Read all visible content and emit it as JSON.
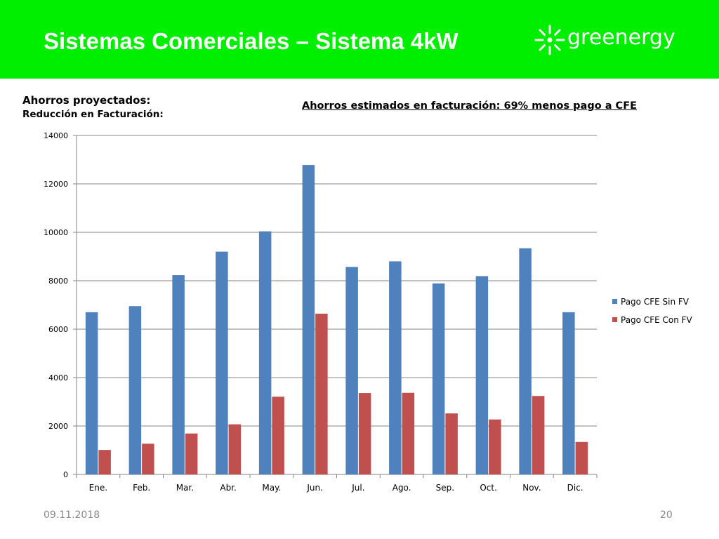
{
  "header": {
    "title": "Sistemas Comerciales – Sistema 4kW",
    "logo_text": "greenergy",
    "background_color": "#00ee00",
    "logo_icon": "sun-burst-icon"
  },
  "subtitle": {
    "line1": "Ahorros proyectados:",
    "line2": "Reducción en Facturación:"
  },
  "chart_data": {
    "type": "bar",
    "title": "Ahorros estimados en facturación: 69% menos pago a CFE",
    "xlabel": "",
    "ylabel": "",
    "categories": [
      "Ene.",
      "Feb.",
      "Mar.",
      "Abr.",
      "May.",
      "Jun.",
      "Jul.",
      "Ago.",
      "Sep.",
      "Oct.",
      "Nov.",
      "Dic."
    ],
    "series": [
      {
        "name": "Pago CFE Sin FV",
        "color": "#4f81bd",
        "values": [
          6700,
          6950,
          8230,
          9200,
          10040,
          12780,
          8570,
          8800,
          7890,
          8190,
          9340,
          6700
        ]
      },
      {
        "name": "Pago CFE Con FV",
        "color": "#c0504d",
        "values": [
          1010,
          1270,
          1690,
          2070,
          3210,
          6640,
          3360,
          3370,
          2520,
          2270,
          3240,
          1340
        ]
      }
    ],
    "ylim": [
      0,
      14000
    ],
    "yticks": [
      "0",
      "2000",
      "4000",
      "6000",
      "8000",
      "10000",
      "12000",
      "14000"
    ],
    "grid": true,
    "legend_position": "right"
  },
  "footer": {
    "date": "09.11.2018",
    "page": "20"
  }
}
